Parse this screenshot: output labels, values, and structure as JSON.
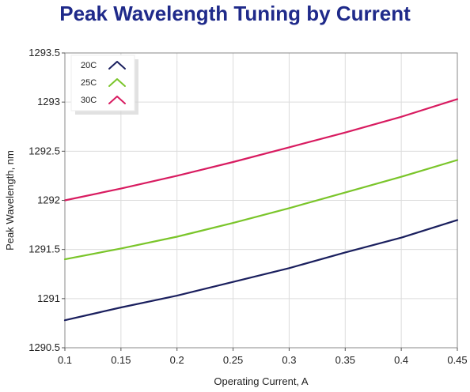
{
  "chart_data": {
    "type": "line",
    "title": "Peak Wavelength Tuning by Current",
    "xlabel": "Operating Current, A",
    "ylabel": "Peak Wavelength, nm",
    "xlim": [
      0.1,
      0.45
    ],
    "ylim": [
      1290.5,
      1293.5
    ],
    "x_ticks": [
      0.1,
      0.15,
      0.2,
      0.25,
      0.3,
      0.35,
      0.4,
      0.45
    ],
    "x_tick_labels": [
      "0.1",
      "0.15",
      "0.2",
      "0.25",
      "0.3",
      "0.35",
      "0.4",
      "0.45"
    ],
    "y_ticks": [
      1290.5,
      1291,
      1291.5,
      1292,
      1292.5,
      1293,
      1293.5
    ],
    "y_tick_labels": [
      "1290.5",
      "1291",
      "1291.5",
      "1292",
      "1292.5",
      "1293",
      "1293.5"
    ],
    "grid": true,
    "legend_position": "top-left",
    "x": [
      0.1,
      0.15,
      0.2,
      0.25,
      0.3,
      0.35,
      0.4,
      0.45
    ],
    "series": [
      {
        "name": "20C",
        "color": "#1a1f5e",
        "values": [
          1290.78,
          1290.91,
          1291.03,
          1291.17,
          1291.31,
          1291.47,
          1291.62,
          1291.8
        ]
      },
      {
        "name": "25C",
        "color": "#7ac52a",
        "values": [
          1291.4,
          1291.51,
          1291.63,
          1291.77,
          1291.92,
          1292.08,
          1292.24,
          1292.41
        ]
      },
      {
        "name": "30C",
        "color": "#d81b60",
        "values": [
          1292.0,
          1292.12,
          1292.25,
          1292.39,
          1292.54,
          1292.69,
          1292.85,
          1293.03
        ]
      }
    ]
  }
}
